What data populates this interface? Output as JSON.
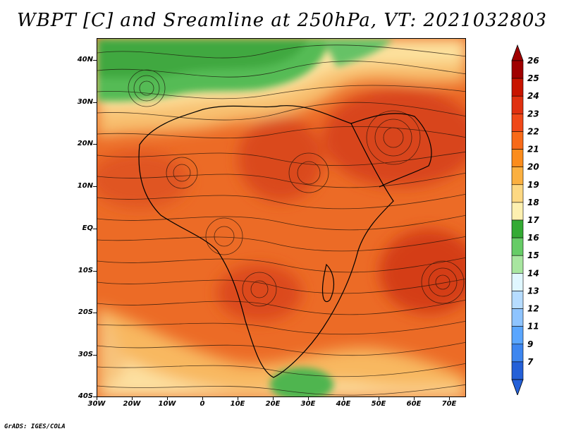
{
  "title": "WBPT [C] and Sreamline at 250hPa, VT: 2021032803",
  "credit": "GrADS: IGES/COLA",
  "latitude_labels": [
    "40N",
    "30N",
    "20N",
    "10N",
    "EQ",
    "10S",
    "20S",
    "30S",
    "40S"
  ],
  "longitude_labels": [
    "30W",
    "20W",
    "10W",
    "0",
    "10E",
    "20E",
    "30E",
    "40E",
    "50E",
    "60E",
    "70E"
  ],
  "colorbar": {
    "levels": [
      26,
      25,
      24,
      23,
      22,
      21,
      20,
      19,
      18,
      17,
      16,
      15,
      14,
      13,
      12,
      11,
      9,
      7
    ],
    "colors": [
      "#a00000",
      "#c81400",
      "#e03010",
      "#f04818",
      "#f86a18",
      "#fb8c1c",
      "#fbb040",
      "#fdd882",
      "#fdf0b0",
      "#33aa33",
      "#66cc66",
      "#a8e6a0",
      "#e0f7ff",
      "#b6dcff",
      "#8ec4ff",
      "#5aa6ff",
      "#3d86f0",
      "#2460d8"
    ]
  },
  "map_colors": {
    "hot_core": "#d94a1a",
    "warm": "#ee6a25",
    "mild": "#f8b860",
    "cool_band": "#fde0a0",
    "green": "#55bb55",
    "light_green": "#8fd48a"
  }
}
